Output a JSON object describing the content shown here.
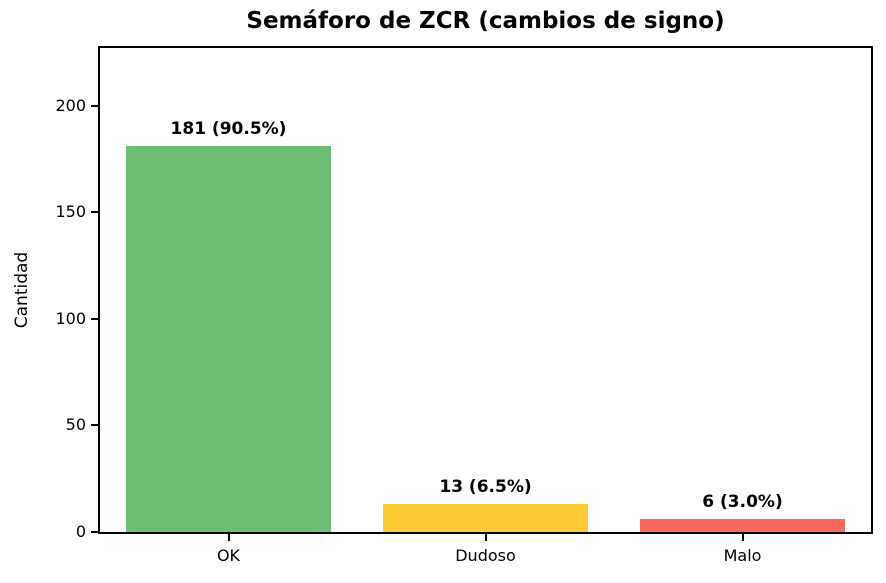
{
  "chart_data": {
    "type": "bar",
    "title": "Semáforo de ZCR (cambios de signo)",
    "categories": [
      "OK",
      "Dudoso",
      "Malo"
    ],
    "values": [
      181,
      13,
      6
    ],
    "bar_labels": [
      "181 (90.5%)",
      "13 (6.5%)",
      "6 (3.0%)"
    ],
    "colors": [
      "#6dbe72",
      "#ffca38",
      "#f5695e"
    ],
    "xlabel": "",
    "ylabel": "Cantidad",
    "ylim": [
      0,
      227
    ],
    "yticks": [
      0,
      50,
      100,
      150,
      200
    ],
    "grid": false,
    "legend": null,
    "bar_width_fraction": 0.8
  }
}
